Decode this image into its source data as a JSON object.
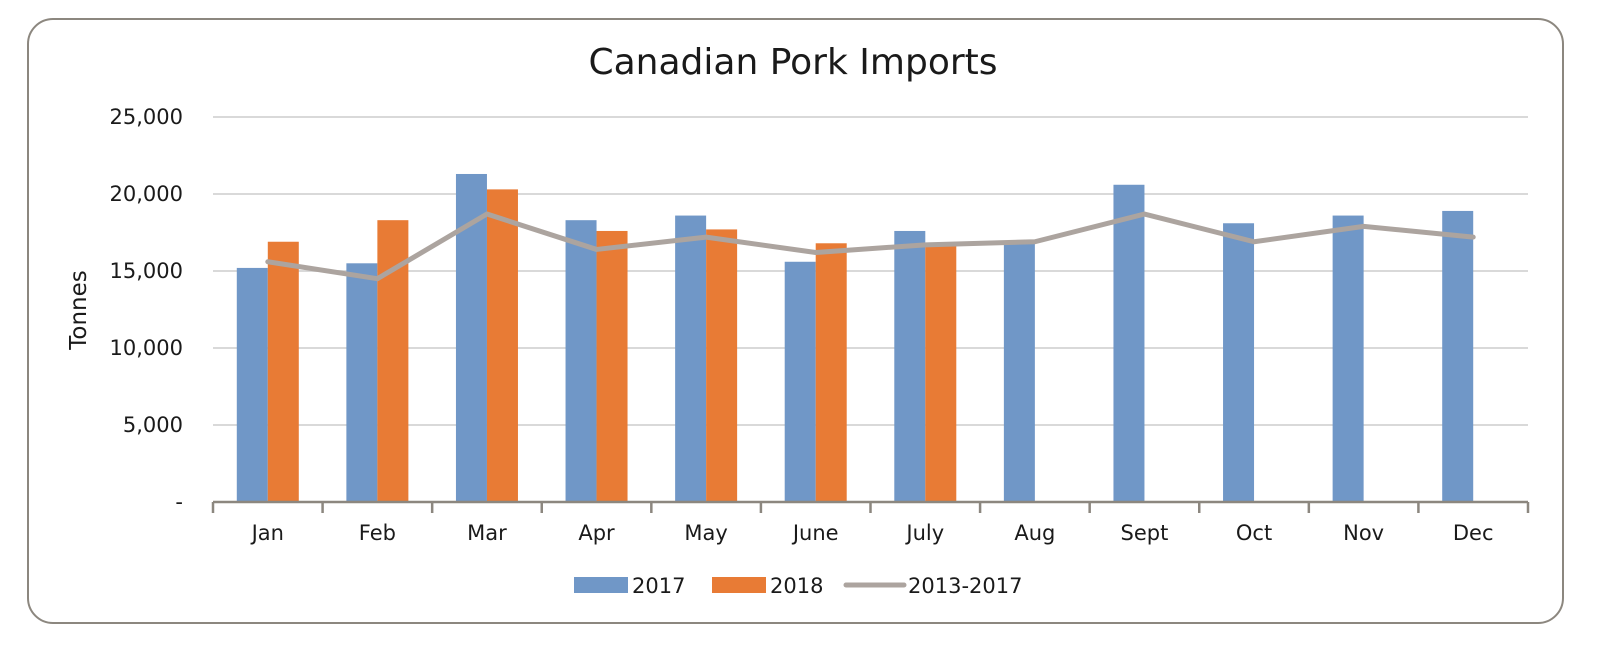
{
  "chart_data": {
    "type": "bar",
    "title": "Canadian Pork Imports",
    "xlabel": "",
    "ylabel": "Tonnes",
    "ylim": [
      0,
      25000
    ],
    "yticks": [
      0,
      5000,
      10000,
      15000,
      20000,
      25000
    ],
    "ytick_labels": [
      "-",
      "5,000",
      "10,000",
      "15,000",
      "20,000",
      "25,000"
    ],
    "categories": [
      "Jan",
      "Feb",
      "Mar",
      "Apr",
      "May",
      "June",
      "July",
      "Aug",
      "Sept",
      "Oct",
      "Nov",
      "Dec"
    ],
    "series": [
      {
        "name": "2017",
        "type": "bar",
        "color": "#7097c7",
        "values": [
          15200,
          15500,
          21300,
          18300,
          18600,
          15600,
          17600,
          16800,
          20600,
          18100,
          18600,
          18900
        ]
      },
      {
        "name": "2018",
        "type": "bar",
        "color": "#e87b35",
        "values": [
          16900,
          18300,
          20300,
          17600,
          17700,
          16800,
          16800,
          null,
          null,
          null,
          null,
          null
        ]
      },
      {
        "name": "2013-2017",
        "type": "line",
        "color": "#aca49f",
        "values": [
          15600,
          14500,
          18700,
          16400,
          17200,
          16200,
          16700,
          16900,
          18700,
          16900,
          17900,
          17200
        ]
      }
    ],
    "grid": true,
    "legend_position": "bottom"
  }
}
